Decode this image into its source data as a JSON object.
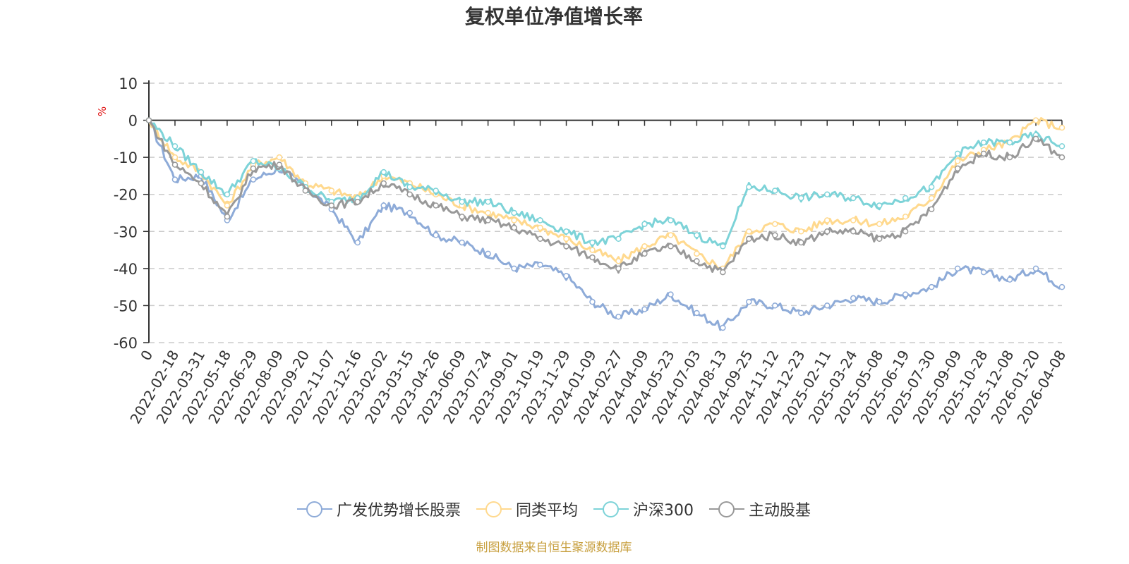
{
  "chart_data": {
    "type": "line",
    "title": "复权单位净值增长率",
    "ylabel": "%",
    "ylim": [
      -60,
      10
    ],
    "yticks": [
      10,
      0,
      -10,
      -20,
      -30,
      -40,
      -50,
      -60
    ],
    "x": [
      "0",
      "2022-02-18",
      "2022-03-31",
      "2022-05-18",
      "2022-06-29",
      "2022-08-09",
      "2022-09-20",
      "2022-11-07",
      "2022-12-16",
      "2023-02-02",
      "2023-03-15",
      "2023-04-26",
      "2023-06-09",
      "2023-07-24",
      "2023-09-01",
      "2023-10-19",
      "2023-11-29",
      "2024-01-09",
      "2024-02-27",
      "2024-04-09",
      "2024-05-23",
      "2024-07-03",
      "2024-08-13",
      "2024-09-25",
      "2024-11-12",
      "2024-12-23",
      "2025-02-11",
      "2025-03-24",
      "2025-05-08",
      "2025-06-19",
      "2025-07-30",
      "2025-09-09",
      "2025-10-28",
      "2025-12-08",
      "2026-01-20",
      "2026-04-08"
    ],
    "series": [
      {
        "name": "广发优势增长股票",
        "color": "#8eabd8",
        "values": [
          0,
          -16,
          -15,
          -27,
          -16,
          -13,
          -18,
          -24,
          -33,
          -23,
          -25,
          -31,
          -33,
          -36,
          -40,
          -39,
          -42,
          -49,
          -53,
          -51,
          -47,
          -52,
          -56,
          -49,
          -50,
          -52,
          -50,
          -48,
          -49,
          -47,
          -45,
          -40,
          -41,
          -43,
          -40,
          -45
        ]
      },
      {
        "name": "同类平均",
        "color": "#ffd98e",
        "values": [
          0,
          -10,
          -14,
          -23,
          -12,
          -10,
          -17,
          -19,
          -21,
          -15,
          -17,
          -20,
          -23,
          -25,
          -27,
          -29,
          -32,
          -35,
          -38,
          -34,
          -31,
          -36,
          -40,
          -30,
          -28,
          -30,
          -27,
          -27,
          -28,
          -26,
          -21,
          -11,
          -8,
          -6,
          0,
          -2
        ]
      },
      {
        "name": "沪深300",
        "color": "#7dd3d8",
        "values": [
          0,
          -7,
          -14,
          -20,
          -11,
          -13,
          -18,
          -22,
          -21,
          -14,
          -18,
          -19,
          -22,
          -22,
          -25,
          -27,
          -30,
          -33,
          -32,
          -28,
          -27,
          -31,
          -34,
          -18,
          -19,
          -21,
          -20,
          -21,
          -23,
          -21,
          -18,
          -9,
          -6,
          -6,
          -4,
          -7
        ]
      },
      {
        "name": "主动股基",
        "color": "#999999",
        "values": [
          0,
          -12,
          -17,
          -26,
          -13,
          -12,
          -19,
          -23,
          -22,
          -17,
          -20,
          -23,
          -26,
          -27,
          -29,
          -32,
          -34,
          -37,
          -40,
          -36,
          -34,
          -38,
          -41,
          -32,
          -31,
          -33,
          -30,
          -30,
          -32,
          -30,
          -24,
          -13,
          -9,
          -10,
          -5,
          -10
        ]
      }
    ]
  },
  "source_note": "制图数据来自恒生聚源数据库"
}
